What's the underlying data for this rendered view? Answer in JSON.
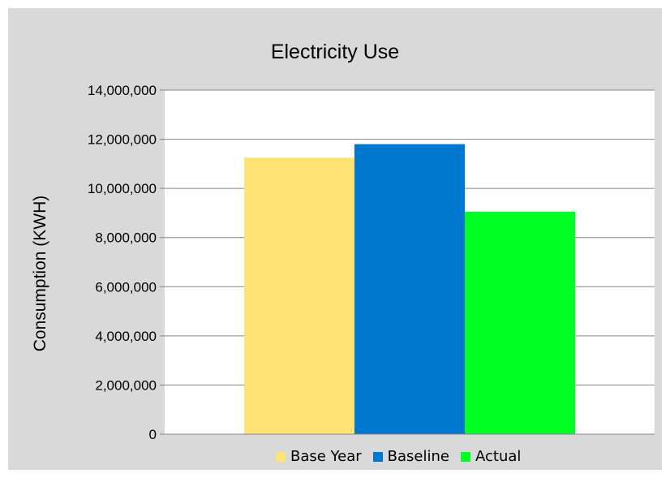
{
  "chart_data": {
    "type": "bar",
    "title": "Electricity Use",
    "xlabel": "",
    "ylabel": "Consumption (KWH)",
    "ylim": [
      0,
      14000000
    ],
    "ytick_values": [
      0,
      2000000,
      4000000,
      6000000,
      8000000,
      10000000,
      12000000,
      14000000
    ],
    "ytick_labels": [
      "0",
      "2,000,000",
      "4,000,000",
      "6,000,000",
      "8,000,000",
      "10,000,000",
      "12,000,000",
      "14,000,000"
    ],
    "grid": true,
    "legend_position": "bottom",
    "categories": [
      ""
    ],
    "series": [
      {
        "name": "Base Year",
        "values": [
          11250000
        ],
        "color": "#ffe375"
      },
      {
        "name": "Baseline",
        "values": [
          11800000
        ],
        "color": "#0078cf"
      },
      {
        "name": "Actual",
        "values": [
          9050000
        ],
        "color": "#00ff25"
      }
    ]
  }
}
